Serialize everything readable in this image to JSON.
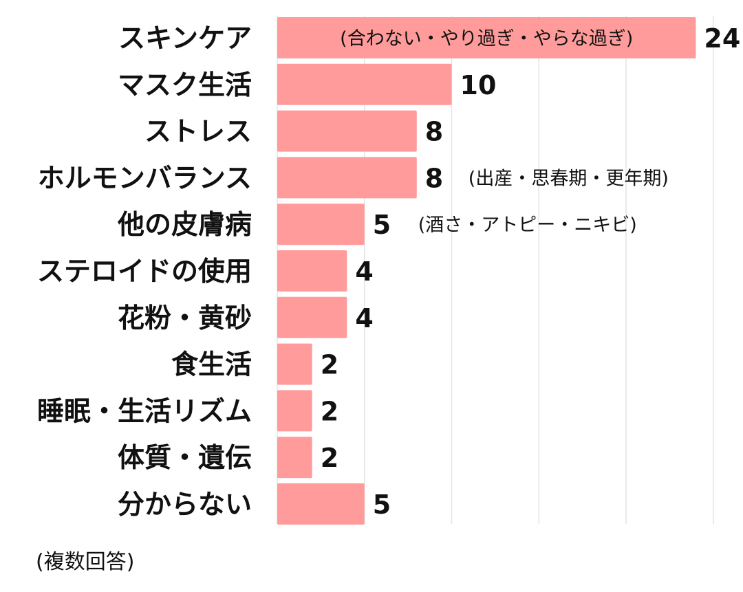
{
  "chart_data": {
    "type": "bar",
    "orientation": "horizontal",
    "categories": [
      "スキンケア",
      "マスク生活",
      "ストレス",
      "ホルモンバランス",
      "他の皮膚病",
      "ステロイドの使用",
      "花粉・黄砂",
      "食生活",
      "睡眠・生活リズム",
      "体質・遺伝",
      "分からない"
    ],
    "values": [
      24,
      10,
      8,
      8,
      5,
      4,
      4,
      2,
      2,
      2,
      5
    ],
    "notes": [
      {
        "category_index": 0,
        "text": "(合わない・やり過ぎ・やらな過ぎ)"
      },
      {
        "category_index": 3,
        "text": "(出産・思春期・更年期)"
      },
      {
        "category_index": 4,
        "text": "(酒さ・アトピー・ニキビ)"
      }
    ],
    "xlim": [
      0,
      26
    ],
    "grid": true,
    "colors": {
      "bar": "#ff9b9b",
      "grid": "#e3e3e3",
      "text": "#111111"
    }
  },
  "footnote": "(複数回答)"
}
